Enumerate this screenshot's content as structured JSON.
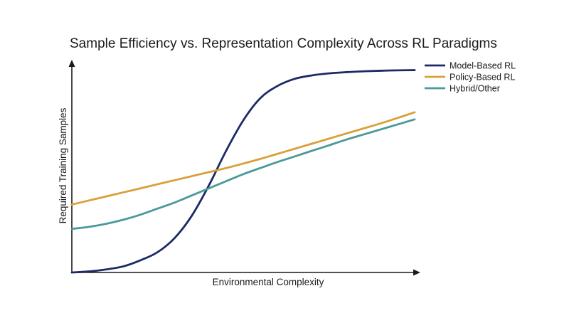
{
  "chart_data": {
    "type": "line",
    "title": "Sample Efficiency vs. Representation Complexity Across RL Paradigms",
    "xlabel": "Environmental Complexity",
    "ylabel": "Required Training Samples",
    "xlim": [
      0,
      1
    ],
    "ylim": [
      0,
      1
    ],
    "grid": false,
    "legend": "top-right",
    "x": [
      0,
      0.05,
      0.1,
      0.15,
      0.2,
      0.25,
      0.3,
      0.35,
      0.4,
      0.45,
      0.5,
      0.55,
      0.6,
      0.65,
      0.7,
      0.75,
      0.8,
      0.85,
      0.9,
      0.95,
      1
    ],
    "series": [
      {
        "name": "Model-Based RL",
        "color": "#1c2a66",
        "values": [
          0.0,
          0.005,
          0.015,
          0.03,
          0.06,
          0.1,
          0.17,
          0.28,
          0.43,
          0.6,
          0.75,
          0.86,
          0.92,
          0.955,
          0.972,
          0.982,
          0.988,
          0.992,
          0.995,
          0.997,
          0.998
        ]
      },
      {
        "name": "Policy-Based RL",
        "color": "#d9a03a",
        "values": [
          0.335,
          0.355,
          0.375,
          0.395,
          0.415,
          0.435,
          0.455,
          0.475,
          0.495,
          0.515,
          0.537,
          0.56,
          0.585,
          0.61,
          0.635,
          0.66,
          0.685,
          0.71,
          0.735,
          0.762,
          0.79
        ]
      },
      {
        "name": "Hybrid/Other",
        "color": "#4a9a98",
        "values": [
          0.215,
          0.225,
          0.24,
          0.26,
          0.285,
          0.315,
          0.345,
          0.38,
          0.415,
          0.45,
          0.485,
          0.515,
          0.545,
          0.572,
          0.6,
          0.627,
          0.655,
          0.68,
          0.705,
          0.73,
          0.755
        ]
      }
    ]
  }
}
